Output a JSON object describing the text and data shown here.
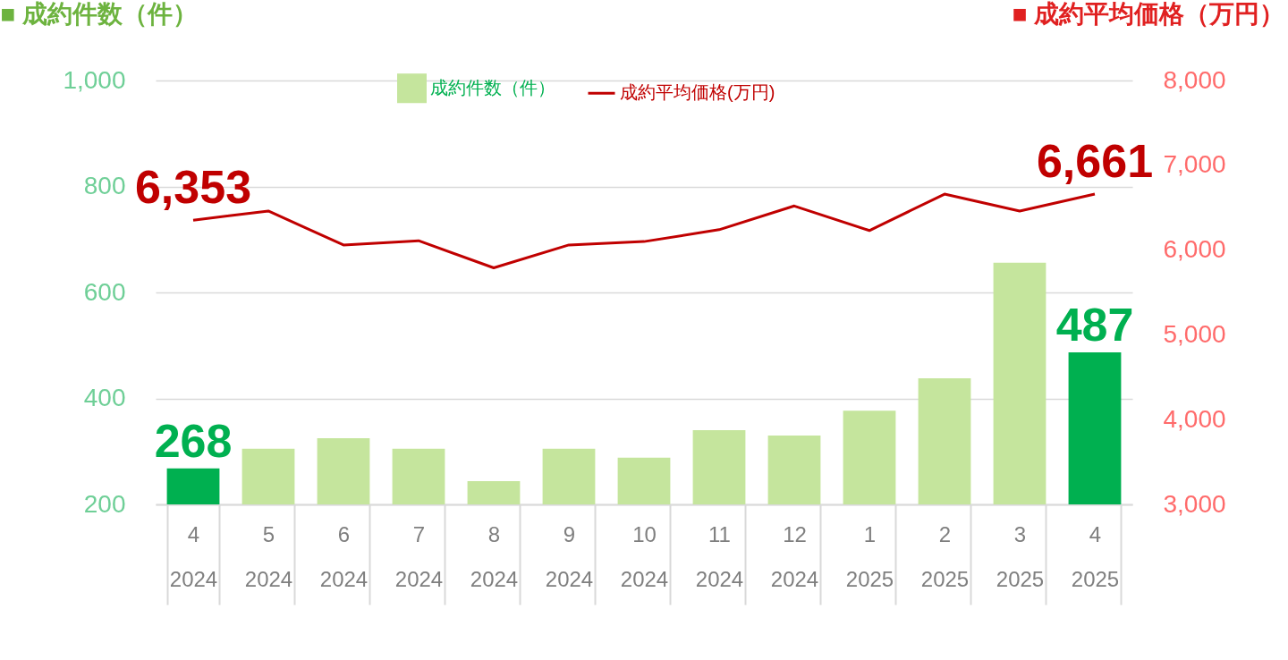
{
  "chart_data": {
    "type": "bar",
    "ylabel": "■ 成約件数（件）",
    "y2label": "■ 成約平均価格（万円）",
    "categories": [
      "4\n2024",
      "5\n2024",
      "6\n2024",
      "7\n2024",
      "8\n2024",
      "9\n2024",
      "10\n2024",
      "11\n2024",
      "12\n2024",
      "1\n2025",
      "2\n2025",
      "3\n2025",
      "4\n2025"
    ],
    "series": [
      {
        "name": "成約件数（件）",
        "color": "#c5e59d",
        "colors": [
          "#00b050",
          "#c5e59d",
          "#c5e59d",
          "#c5e59d",
          "#c5e59d",
          "#c5e59d",
          "#c5e59d",
          "#c5e59d",
          "#c5e59d",
          "#c5e59d",
          "#c5e59d",
          "#c5e59d",
          "#00b050"
        ],
        "values": [
          268,
          305,
          325,
          305,
          244,
          305,
          288,
          340,
          330,
          377,
          438,
          656,
          487
        ],
        "value_labels": [
          "268",
          null,
          null,
          null,
          null,
          null,
          null,
          null,
          null,
          null,
          null,
          null,
          "487"
        ]
      },
      {
        "name": "成約平均価格(万円)",
        "type": "line",
        "axis": "y2",
        "color": "#c00000",
        "values": [
          6353,
          6460,
          6060,
          6110,
          5790,
          6060,
          6100,
          6240,
          6520,
          6230,
          6660,
          6460,
          6661
        ],
        "value_labels": [
          "6,353",
          null,
          null,
          null,
          null,
          null,
          null,
          null,
          null,
          null,
          null,
          null,
          "6,661"
        ]
      }
    ],
    "ylim": [
      200,
      1000
    ],
    "yticks": [
      200,
      400,
      600,
      800,
      {
        "value": 1000,
        "label": "1,000"
      }
    ],
    "y2lim": [
      3000,
      8000
    ],
    "y2ticks": [
      {
        "value": 3000,
        "label": "3,000"
      },
      {
        "value": 4000,
        "label": "4,000"
      },
      {
        "value": 5000,
        "label": "5,000"
      },
      {
        "value": 6000,
        "label": "6,000"
      },
      {
        "value": 7000,
        "label": "7,000"
      },
      {
        "value": 8000,
        "label": "8,000"
      }
    ],
    "grid": "y",
    "legend": "top",
    "marker": "none",
    "line_style": "solid"
  }
}
